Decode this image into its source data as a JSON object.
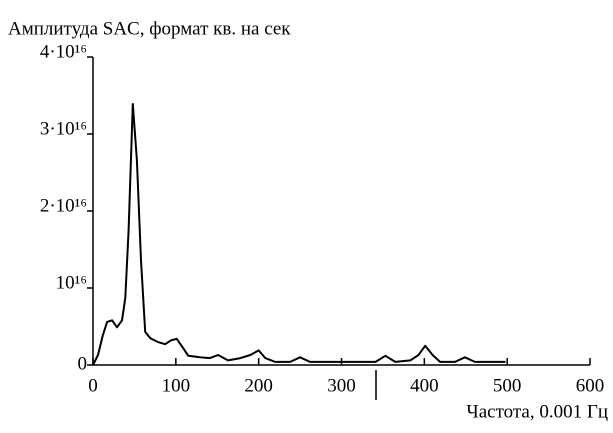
{
  "chart_data": {
    "type": "line",
    "ylabel": "Амплитуда SAC, формат кв. на сек",
    "xlabel": "Частота, 0.001 Гц",
    "color": "#000000",
    "x": [
      0,
      6,
      12,
      17,
      23,
      29,
      35,
      39,
      43,
      48,
      53,
      58,
      63,
      69,
      78,
      87,
      94,
      101,
      107,
      115,
      129,
      141,
      151,
      163,
      178,
      190,
      200,
      208,
      220,
      238,
      250,
      262,
      280,
      298,
      322,
      341,
      353,
      365,
      383,
      393,
      401,
      410,
      419,
      437,
      449,
      461,
      473,
      498
    ],
    "values": [
      0,
      1300000000000000.0,
      3900000000000000.0,
      5600000000000000.0,
      5800000000000000.0,
      4900000000000000.0,
      5800000000000000.0,
      8700000000000000.0,
      1.75e+16,
      3.39e+16,
      2.66e+16,
      1.36e+16,
      4300000000000000.0,
      3500000000000000.0,
      3000000000000000.0,
      2700000000000000.0,
      3200000000000000.0,
      3400000000000000.0,
      2500000000000000.0,
      1200000000000000.0,
      1000000000000000.0,
      900000000000000.0,
      1300000000000000.0,
      600000000000000.0,
      900000000000000.0,
      1300000000000000.0,
      1900000000000000.0,
      900000000000000.0,
      400000000000000.0,
      400000000000000.0,
      1000000000000000.0,
      400000000000000.0,
      400000000000000.0,
      400000000000000.0,
      400000000000000.0,
      400000000000000.0,
      1200000000000000.0,
      400000000000000.0,
      600000000000000.0,
      1300000000000000.0,
      2500000000000000.0,
      1300000000000000.0,
      400000000000000.0,
      400000000000000.0,
      1000000000000000.0,
      400000000000000.0,
      400000000000000.0,
      400000000000000.0
    ],
    "xlim": [
      0,
      600
    ],
    "xticks": [
      0,
      100,
      200,
      300,
      400,
      500,
      600
    ],
    "ylim": [
      0,
      4e+16
    ],
    "yticks": [
      0,
      {
        "value": 1e+16,
        "label": "10¹⁶"
      },
      {
        "value": 2e+16,
        "label": "2·10¹⁶"
      },
      {
        "value": 3e+16,
        "label": "3·10¹⁶"
      },
      {
        "value": 4e+16,
        "label": "4·10¹⁶"
      }
    ]
  }
}
